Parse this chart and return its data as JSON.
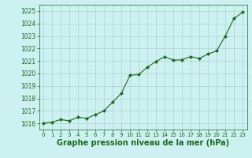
{
  "x": [
    0,
    1,
    2,
    3,
    4,
    5,
    6,
    7,
    8,
    9,
    10,
    11,
    12,
    13,
    14,
    15,
    16,
    17,
    18,
    19,
    20,
    21,
    22,
    23
  ],
  "y": [
    1016.0,
    1016.1,
    1016.3,
    1016.2,
    1016.5,
    1016.4,
    1016.7,
    1017.0,
    1017.7,
    1018.4,
    1019.85,
    1019.9,
    1020.5,
    1020.95,
    1021.35,
    1021.05,
    1021.1,
    1021.35,
    1021.2,
    1021.55,
    1021.8,
    1023.0,
    1024.4,
    1024.9
  ],
  "line_color": "#1a6b1a",
  "marker": "D",
  "marker_size": 2.0,
  "background_color": "#cdf0f0",
  "grid_color": "#b0d0d0",
  "xlabel": "Graphe pression niveau de la mer (hPa)",
  "xlabel_fontsize": 7,
  "xlabel_color": "#1a6b1a",
  "xlabel_bold": true,
  "ytick_labels": [
    1016,
    1017,
    1018,
    1019,
    1020,
    1021,
    1022,
    1023,
    1024,
    1025
  ],
  "ylim": [
    1015.5,
    1025.5
  ],
  "xlim": [
    -0.5,
    23.5
  ],
  "xtick_fontsize": 5,
  "ytick_fontsize": 5.5,
  "tick_color": "#1a6b1a",
  "spine_color": "#1a6b1a",
  "linewidth": 0.8
}
